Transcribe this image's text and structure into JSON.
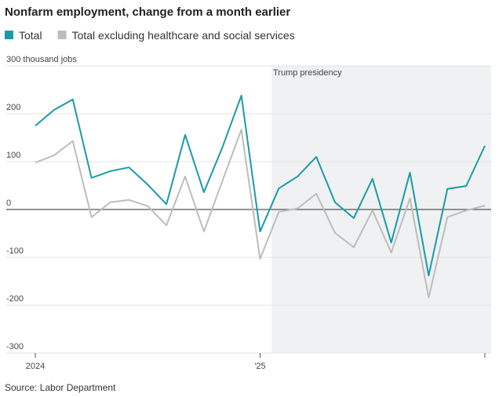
{
  "chart_data": {
    "type": "line",
    "title": "Nonfarm employment, change from a month earlier",
    "source": "Source: Labor Department",
    "annotation": "Trump presidency",
    "categories": [
      "2024",
      null,
      null,
      null,
      null,
      null,
      null,
      null,
      null,
      null,
      null,
      null,
      "'25",
      null,
      null,
      null,
      null,
      null,
      null,
      null,
      null,
      null,
      null,
      null,
      null
    ],
    "series": [
      {
        "name": "Total",
        "color": "#1a9ba6",
        "values": [
          175,
          208,
          230,
          66,
          80,
          88,
          52,
          11,
          156,
          36,
          131,
          238,
          -46,
          44,
          69,
          110,
          15,
          -18,
          64,
          -69,
          77,
          -138,
          43,
          49,
          133
        ]
      },
      {
        "name": "Total excluding healthcare and social services",
        "color": "#bdbdbd",
        "values": [
          98,
          113,
          143,
          -16,
          15,
          20,
          7,
          -33,
          69,
          -46,
          61,
          167,
          -103,
          -5,
          2,
          33,
          -49,
          -79,
          -2,
          -90,
          23,
          -184,
          -16,
          -2,
          8
        ]
      }
    ],
    "ylim": [
      -300,
      300
    ],
    "yticks": [
      {
        "value": 300,
        "label": "300 thousand jobs"
      },
      200,
      100,
      0,
      -100,
      -200,
      -300
    ],
    "grid": true
  }
}
